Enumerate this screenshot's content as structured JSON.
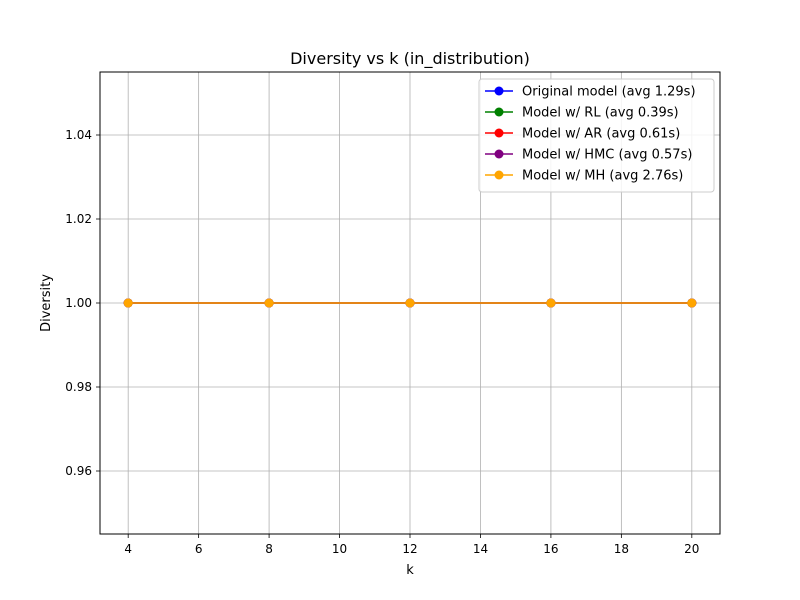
{
  "chart_data": {
    "type": "line",
    "title": "Diversity vs k (in_distribution)",
    "xlabel": "k",
    "ylabel": "Diversity",
    "xlim": [
      3.2,
      20.8
    ],
    "ylim": [
      0.945,
      1.055
    ],
    "xticks": [
      4,
      6,
      8,
      10,
      12,
      14,
      16,
      18,
      20
    ],
    "yticks": [
      0.96,
      0.98,
      1.0,
      1.02,
      1.04
    ],
    "xtick_labels": [
      "4",
      "6",
      "8",
      "10",
      "12",
      "14",
      "16",
      "18",
      "20"
    ],
    "ytick_labels": [
      "0.96",
      "0.98",
      "1.00",
      "1.02",
      "1.04"
    ],
    "grid": true,
    "legend_position": "upper right",
    "x": [
      4,
      8,
      12,
      16,
      20
    ],
    "series": [
      {
        "name": "Original model (avg 1.29s)",
        "color": "#0000ff",
        "values": [
          1.0,
          1.0,
          1.0,
          1.0,
          1.0
        ]
      },
      {
        "name": "Model w/ RL (avg 0.39s)",
        "color": "#008000",
        "values": [
          1.0,
          1.0,
          1.0,
          1.0,
          1.0
        ]
      },
      {
        "name": "Model w/ AR (avg 0.61s)",
        "color": "#ff0000",
        "values": [
          1.0,
          1.0,
          1.0,
          1.0,
          1.0
        ]
      },
      {
        "name": "Model w/ HMC (avg 0.57s)",
        "color": "#800080",
        "values": [
          1.0,
          1.0,
          1.0,
          1.0,
          1.0
        ]
      },
      {
        "name": "Model w/ MH (avg 2.76s)",
        "color": "#ffa500",
        "values": [
          1.0,
          1.0,
          1.0,
          1.0,
          1.0
        ]
      }
    ]
  }
}
